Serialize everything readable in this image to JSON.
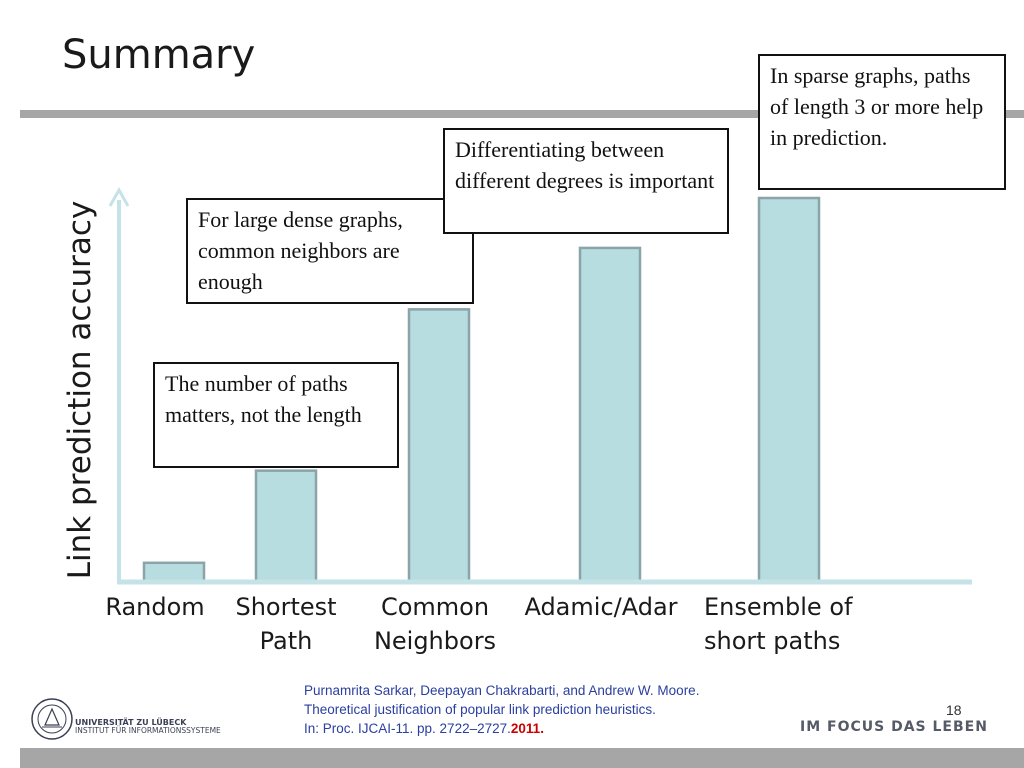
{
  "slide": {
    "title": "Summary",
    "page_number": "18",
    "slogan": "IM FOCUS DAS LEBEN",
    "university_line1": "UNIVERSITÄT ZU LÜBECK",
    "university_line2": "INSTITUT FÜR INFORMATIONSSYSTEME"
  },
  "callouts": {
    "sparse": "In sparse graphs, paths of length 3 or more help in prediction.",
    "degrees": "Differentiating between different degrees is important",
    "dense": "For large dense graphs, common neighbors are enough",
    "paths": "The number of paths matters, not the length"
  },
  "citation": {
    "line1": "Purnamrita Sarkar, Deepayan Chakrabarti, and Andrew W. Moore.",
    "line2": "Theoretical justification of popular link prediction heuristics.",
    "line3": "In: Proc. IJCAI-11. pp. 2722–2727.",
    "year": "2011",
    "period": "."
  },
  "colors": {
    "bar_fill": "#b7dde0",
    "bar_stroke": "#8aa4a8",
    "axis": "#c5e3e6",
    "citation": "#2a3fa0",
    "year": "#cc0000"
  },
  "chart_data": {
    "type": "bar",
    "title": "",
    "ylabel": "Link prediction accuracy",
    "xlabel": "",
    "categories": [
      [
        "Random"
      ],
      [
        "Shortest",
        "Path"
      ],
      [
        "Common",
        "Neighbors"
      ],
      [
        "Adamic/Adar"
      ],
      [
        "Ensemble of",
        "short paths"
      ]
    ],
    "values": [
      0.05,
      0.29,
      0.71,
      0.87,
      1.0
    ],
    "ylim": [
      0,
      1.0
    ],
    "grid": false,
    "legend": "none",
    "y_ticks_shown": false
  }
}
